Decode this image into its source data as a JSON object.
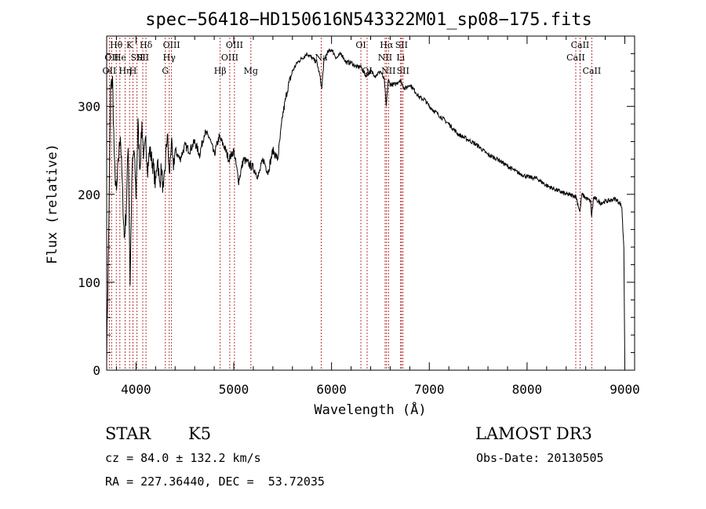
{
  "chart_data": {
    "type": "line",
    "title": "spec−56418−HD150616N543322M01_sp08−175.fits",
    "xlabel": "Wavelength (Å)",
    "ylabel": "Flux (relative)",
    "xlim": [
      3700,
      9100
    ],
    "ylim": [
      0,
      380
    ],
    "x_ticks": [
      4000,
      5000,
      6000,
      7000,
      8000,
      9000
    ],
    "x_tick_labels": [
      "4000",
      "5000",
      "6000",
      "7000",
      "8000",
      "9000"
    ],
    "y_ticks": [
      0,
      100,
      200,
      300
    ],
    "y_tick_labels": [
      "0",
      "100",
      "200",
      "300"
    ],
    "grid": false,
    "series": [
      {
        "x": [
          3700,
          3720,
          3740,
          3760,
          3780,
          3800,
          3820,
          3840,
          3860,
          3880,
          3900,
          3920,
          3940,
          3960,
          3980,
          4000,
          4020,
          4040,
          4060,
          4080,
          4100,
          4120,
          4140,
          4160,
          4180,
          4200,
          4220,
          4240,
          4260,
          4280,
          4300,
          4320,
          4340,
          4360,
          4380,
          4400,
          4450,
          4500,
          4550,
          4600,
          4650,
          4700,
          4750,
          4800,
          4850,
          4900,
          4950,
          5000,
          5050,
          5100,
          5150,
          5200,
          5250,
          5300,
          5350,
          5400,
          5450,
          5500,
          5550,
          5600,
          5650,
          5700,
          5750,
          5800,
          5850,
          5880,
          5900,
          5920,
          5950,
          6000,
          6050,
          6100,
          6150,
          6200,
          6250,
          6300,
          6350,
          6400,
          6450,
          6500,
          6540,
          6560,
          6580,
          6600,
          6650,
          6700,
          6750,
          6800,
          6850,
          6900,
          6950,
          7000,
          7100,
          7200,
          7300,
          7400,
          7500,
          7600,
          7700,
          7800,
          7900,
          8000,
          8100,
          8200,
          8300,
          8400,
          8500,
          8540,
          8560,
          8600,
          8650,
          8660,
          8680,
          8700,
          8750,
          8800,
          8850,
          8900,
          8950,
          8970,
          8980,
          8990,
          9000
        ],
        "y": [
          20,
          150,
          320,
          330,
          230,
          200,
          240,
          270,
          210,
          150,
          180,
          260,
          100,
          230,
          250,
          200,
          280,
          230,
          280,
          240,
          260,
          230,
          250,
          240,
          230,
          210,
          245,
          210,
          230,
          200,
          235,
          270,
          220,
          260,
          230,
          250,
          240,
          255,
          250,
          260,
          245,
          270,
          265,
          245,
          265,
          255,
          240,
          250,
          215,
          240,
          235,
          230,
          220,
          240,
          225,
          250,
          240,
          290,
          320,
          340,
          350,
          355,
          360,
          355,
          350,
          335,
          320,
          350,
          360,
          365,
          355,
          360,
          350,
          350,
          345,
          345,
          335,
          340,
          335,
          340,
          330,
          300,
          330,
          325,
          325,
          330,
          320,
          325,
          318,
          310,
          308,
          300,
          290,
          280,
          268,
          262,
          255,
          245,
          240,
          232,
          225,
          220,
          218,
          210,
          205,
          200,
          198,
          180,
          200,
          196,
          192,
          175,
          196,
          195,
          190,
          192,
          193,
          195,
          190,
          185,
          160,
          140,
          8
        ]
      }
    ],
    "line_markers": [
      {
        "wavelength": 3727,
        "label": "OII",
        "row": 3
      },
      {
        "wavelength": 3750,
        "label": "OII",
        "row": 2
      },
      {
        "wavelength": 3798,
        "label": "Hθ",
        "row": 1
      },
      {
        "wavelength": 3835,
        "label": "He",
        "row": 2
      },
      {
        "wavelength": 3889,
        "label": "Hη",
        "row": 3
      },
      {
        "wavelength": 3934,
        "label": "K",
        "row": 1
      },
      {
        "wavelength": 3969,
        "label": "H",
        "row": 3
      },
      {
        "wavelength": 4010,
        "label": "SII",
        "row": 2
      },
      {
        "wavelength": 4102,
        "label": "Hδ",
        "row": 1
      },
      {
        "wavelength": 4069,
        "label": "SII",
        "row": 2
      },
      {
        "wavelength": 4300,
        "label": "G",
        "row": 3
      },
      {
        "wavelength": 4340,
        "label": "Hγ",
        "row": 2
      },
      {
        "wavelength": 4363,
        "label": "OIII",
        "row": 1
      },
      {
        "wavelength": 4861,
        "label": "Hβ",
        "row": 3
      },
      {
        "wavelength": 4959,
        "label": "OIII",
        "row": 2
      },
      {
        "wavelength": 5007,
        "label": "OIII",
        "row": 1
      },
      {
        "wavelength": 5175,
        "label": "Mg",
        "row": 3
      },
      {
        "wavelength": 5894,
        "label": "Na",
        "row": 2
      },
      {
        "wavelength": 6300,
        "label": "OI",
        "row": 1
      },
      {
        "wavelength": 6364,
        "label": "OI",
        "row": 3
      },
      {
        "wavelength": 6548,
        "label": "NII",
        "row": 2
      },
      {
        "wavelength": 6563,
        "label": "Hα",
        "row": 1
      },
      {
        "wavelength": 6583,
        "label": "NII",
        "row": 3
      },
      {
        "wavelength": 6707,
        "label": "Li",
        "row": 2
      },
      {
        "wavelength": 6716,
        "label": "SII",
        "row": 1
      },
      {
        "wavelength": 6731,
        "label": "SII",
        "row": 3
      },
      {
        "wavelength": 8498,
        "label": "CaII",
        "row": 2
      },
      {
        "wavelength": 8542,
        "label": "CaII",
        "row": 1
      },
      {
        "wavelength": 8662,
        "label": "CaII",
        "row": 3
      }
    ]
  },
  "info": {
    "object_class": "STAR",
    "subclass": "K5",
    "survey": "LAMOST DR3",
    "cz": "cz = 84.0 ± 132.2 km/s",
    "obs_date": "Obs-Date: 20130505",
    "coords": "RA = 227.36440, DEC =  53.72035"
  }
}
